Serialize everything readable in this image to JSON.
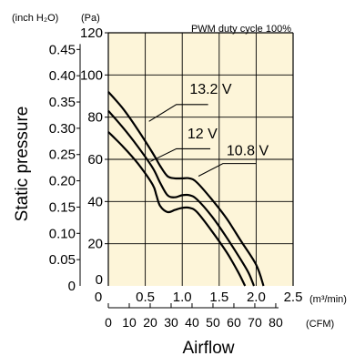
{
  "chart_data": {
    "type": "line",
    "title": "PWM duty cycle 100%",
    "xlabel": "Airflow",
    "ylabel": "Static pressure",
    "x_unit_primary": "(m³/min)",
    "x_unit_secondary": "(CFM)",
    "y_unit_primary": "(Pa)",
    "y_unit_secondary": "(inch H₂O)",
    "xlim": [
      0,
      2.5
    ],
    "ylim": [
      0,
      120
    ],
    "grid": true,
    "x_ticks": [
      "0",
      "0.5",
      "1.0",
      "1.5",
      "2.0",
      "2.5"
    ],
    "x_ticks_cfm": [
      "0",
      "10",
      "20",
      "30",
      "40",
      "50",
      "60",
      "70",
      "80"
    ],
    "y_ticks_pa": [
      "0",
      "20",
      "40",
      "60",
      "80",
      "100",
      "120"
    ],
    "y_ticks_inch": [
      "0",
      "0.05",
      "0.10",
      "0.15",
      "0.20",
      "0.25",
      "0.30",
      "0.35",
      "0.40",
      "0.45"
    ],
    "series": [
      {
        "name": "13.2 V",
        "x": [
          0,
          0.2,
          0.4,
          0.6,
          0.7,
          0.8,
          0.9,
          1.0,
          1.1,
          1.2,
          1.4,
          1.6,
          1.8,
          2.0,
          2.1
        ],
        "y": [
          92,
          84,
          74,
          63,
          57,
          52,
          51,
          51,
          51,
          49,
          41,
          32,
          21,
          10,
          0
        ]
      },
      {
        "name": "12 V",
        "x": [
          0,
          0.2,
          0.4,
          0.6,
          0.7,
          0.8,
          0.9,
          1.0,
          1.1,
          1.2,
          1.4,
          1.6,
          1.8,
          1.9,
          1.97
        ],
        "y": [
          83,
          75,
          66,
          56,
          49,
          43,
          42,
          43,
          43,
          41,
          33,
          23,
          12,
          6,
          0
        ]
      },
      {
        "name": "10.8 V",
        "x": [
          0,
          0.2,
          0.4,
          0.6,
          0.65,
          0.7,
          0.8,
          0.9,
          1.0,
          1.1,
          1.2,
          1.4,
          1.6,
          1.75,
          1.85
        ],
        "y": [
          73,
          66,
          58,
          48,
          43,
          38,
          35,
          36,
          37,
          37,
          35,
          26,
          16,
          7,
          0
        ]
      }
    ]
  }
}
